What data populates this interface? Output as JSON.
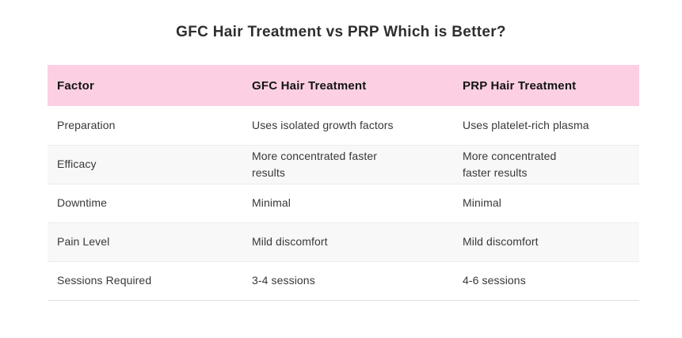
{
  "title": "GFC Hair Treatment vs PRP Which is Better?",
  "colors": {
    "header_bg": "#fcd0e2",
    "alt_row_bg": "#f8f8f8",
    "title_text": "#2e2e2e",
    "body_text": "#383838",
    "row_border": "#ececec"
  },
  "chart_data": {
    "type": "table",
    "title": "GFC Hair Treatment vs PRP Which is Better?",
    "columns": [
      "Factor",
      "GFC Hair Treatment",
      "PRP Hair Treatment"
    ],
    "rows": [
      {
        "factor": "Preparation",
        "gfc": "Uses isolated growth factors",
        "prp": "Uses platelet-rich plasma"
      },
      {
        "factor": "Efficacy",
        "gfc": "More concentrated faster\nresults",
        "prp": "More concentrated\nfaster results"
      },
      {
        "factor": "Downtime",
        "gfc": "Minimal",
        "prp": "Minimal"
      },
      {
        "factor": "Pain Level",
        "gfc": "Mild discomfort",
        "prp": "Mild discomfort"
      },
      {
        "factor": "Sessions Required",
        "gfc": "3-4 sessions",
        "prp": "4-6 sessions"
      }
    ]
  }
}
